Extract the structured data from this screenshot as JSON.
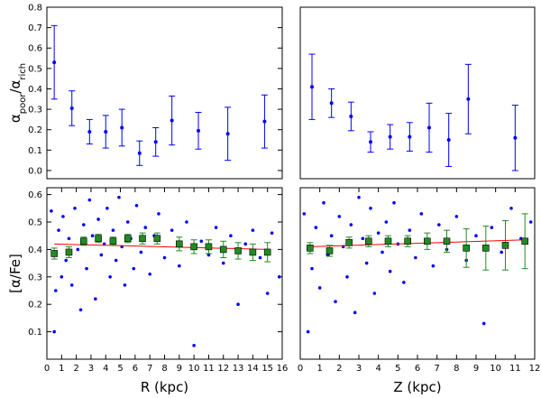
{
  "chart_data": [
    {
      "type": "errorbar",
      "color": "#0000ff",
      "x": [
        0.5,
        1.7,
        2.9,
        4.0,
        5.1,
        6.3,
        7.4,
        8.5,
        10.3,
        12.3,
        14.8
      ],
      "values": [
        0.53,
        0.305,
        0.19,
        0.19,
        0.21,
        0.085,
        0.14,
        0.245,
        0.195,
        0.18,
        0.24
      ],
      "errors": [
        0.18,
        0.085,
        0.06,
        0.08,
        0.09,
        0.06,
        0.07,
        0.12,
        0.09,
        0.13,
        0.13
      ],
      "xlim": [
        0,
        16
      ],
      "ylim": [
        -0.04,
        0.8
      ],
      "yticks": [
        {
          "value": 0,
          "label": "0.0"
        },
        0.1,
        0.2,
        0.3,
        0.4,
        0.5,
        0.6,
        0.7,
        0.8
      ],
      "ylabel": [
        "α",
        "poor",
        "/α",
        "rich"
      ]
    },
    {
      "type": "errorbar",
      "color": "#0000ff",
      "x": [
        0.6,
        1.6,
        2.6,
        3.6,
        4.6,
        5.6,
        6.6,
        7.6,
        8.6,
        11.0
      ],
      "values": [
        0.41,
        0.33,
        0.265,
        0.14,
        0.165,
        0.165,
        0.21,
        0.15,
        0.35,
        0.16
      ],
      "errors": [
        0.16,
        0.07,
        0.07,
        0.05,
        0.06,
        0.07,
        0.12,
        0.13,
        0.17,
        0.16
      ],
      "xlim": [
        0,
        12
      ],
      "ylim": [
        -0.04,
        0.8
      ]
    },
    {
      "type": "scatter",
      "xlim": [
        0,
        16
      ],
      "ylim": [
        0,
        0.625
      ],
      "xticks": [
        0,
        1,
        2,
        3,
        4,
        5,
        6,
        7,
        8,
        9,
        10,
        11,
        12,
        13,
        14,
        15,
        16
      ],
      "yticks": [
        0.1,
        0.2,
        0.3,
        0.4,
        0.5,
        0.6
      ],
      "xlabel": "R (kpc)",
      "ylabel": [
        "[α/Fe]"
      ],
      "points": {
        "color": "#0000ff",
        "x": [
          0.3,
          0.5,
          0.6,
          0.8,
          1.0,
          1.1,
          1.3,
          1.5,
          1.7,
          1.9,
          2.1,
          2.3,
          2.5,
          2.7,
          2.9,
          3.1,
          3.3,
          3.5,
          3.7,
          3.9,
          4.1,
          4.3,
          4.5,
          4.7,
          4.9,
          5.1,
          5.3,
          5.5,
          5.7,
          5.9,
          6.1,
          6.4,
          6.7,
          7.0,
          7.3,
          7.6,
          8.0,
          8.5,
          9.0,
          9.5,
          10.0,
          10.5,
          11.0,
          11.5,
          12.0,
          12.5,
          13.0,
          13.5,
          14.0,
          14.5,
          15.0,
          15.3,
          15.8
        ],
        "values": [
          0.54,
          0.1,
          0.25,
          0.47,
          0.3,
          0.52,
          0.36,
          0.44,
          0.27,
          0.55,
          0.4,
          0.18,
          0.49,
          0.33,
          0.58,
          0.45,
          0.22,
          0.51,
          0.38,
          0.42,
          0.55,
          0.3,
          0.47,
          0.36,
          0.59,
          0.41,
          0.27,
          0.5,
          0.44,
          0.33,
          0.56,
          0.39,
          0.48,
          0.31,
          0.45,
          0.53,
          0.37,
          0.47,
          0.34,
          0.5,
          0.05,
          0.43,
          0.38,
          0.48,
          0.35,
          0.45,
          0.2,
          0.42,
          0.47,
          0.37,
          0.24,
          0.46,
          0.3
        ]
      },
      "binned": {
        "color": "#228b22",
        "x": [
          0.5,
          1.5,
          2.5,
          3.5,
          4.5,
          5.5,
          6.5,
          7.5,
          9,
          10,
          11,
          12,
          13,
          14,
          15
        ],
        "values": [
          0.385,
          0.39,
          0.43,
          0.44,
          0.43,
          0.44,
          0.44,
          0.44,
          0.42,
          0.41,
          0.41,
          0.4,
          0.395,
          0.39,
          0.39
        ],
        "errors": [
          0.02,
          0.02,
          0.015,
          0.015,
          0.015,
          0.015,
          0.02,
          0.02,
          0.025,
          0.025,
          0.025,
          0.03,
          0.03,
          0.03,
          0.035
        ]
      },
      "fit": {
        "color": "#ff0000",
        "x": [
          0.5,
          15
        ],
        "values": [
          0.42,
          0.4
        ]
      }
    },
    {
      "type": "scatter",
      "xlim": [
        0,
        12
      ],
      "ylim": [
        0,
        0.625
      ],
      "xticks": [
        0,
        1,
        2,
        3,
        4,
        5,
        6,
        7,
        8,
        9,
        10,
        11,
        12
      ],
      "xlabel": "Z (kpc)",
      "points": {
        "color": "#0000ff",
        "x": [
          0.2,
          0.4,
          0.6,
          0.8,
          1.0,
          1.2,
          1.4,
          1.6,
          1.8,
          2.0,
          2.2,
          2.4,
          2.6,
          2.8,
          3.0,
          3.2,
          3.4,
          3.6,
          3.8,
          4.0,
          4.2,
          4.4,
          4.6,
          4.8,
          5.0,
          5.3,
          5.6,
          5.9,
          6.2,
          6.5,
          6.8,
          7.1,
          7.5,
          8.0,
          8.5,
          9.0,
          9.4,
          9.8,
          10.3,
          10.8,
          11.3,
          11.8
        ],
        "values": [
          0.53,
          0.1,
          0.33,
          0.48,
          0.26,
          0.57,
          0.38,
          0.45,
          0.21,
          0.52,
          0.41,
          0.3,
          0.49,
          0.17,
          0.59,
          0.44,
          0.35,
          0.55,
          0.24,
          0.46,
          0.39,
          0.5,
          0.32,
          0.57,
          0.42,
          0.28,
          0.47,
          0.37,
          0.53,
          0.43,
          0.34,
          0.49,
          0.4,
          0.52,
          0.36,
          0.45,
          0.13,
          0.48,
          0.39,
          0.55,
          0.44,
          0.5
        ]
      },
      "binned": {
        "color": "#228b22",
        "x": [
          0.5,
          1.5,
          2.5,
          3.5,
          4.5,
          5.5,
          6.5,
          7.5,
          8.5,
          9.5,
          10.5,
          11.5
        ],
        "values": [
          0.405,
          0.395,
          0.425,
          0.43,
          0.43,
          0.43,
          0.43,
          0.43,
          0.405,
          0.405,
          0.415,
          0.43
        ],
        "errors": [
          0.02,
          0.02,
          0.02,
          0.02,
          0.02,
          0.02,
          0.03,
          0.04,
          0.07,
          0.08,
          0.09,
          0.1
        ]
      },
      "fit": {
        "color": "#ff0000",
        "x": [
          0.5,
          11.5
        ],
        "values": [
          0.41,
          0.435
        ]
      }
    }
  ]
}
